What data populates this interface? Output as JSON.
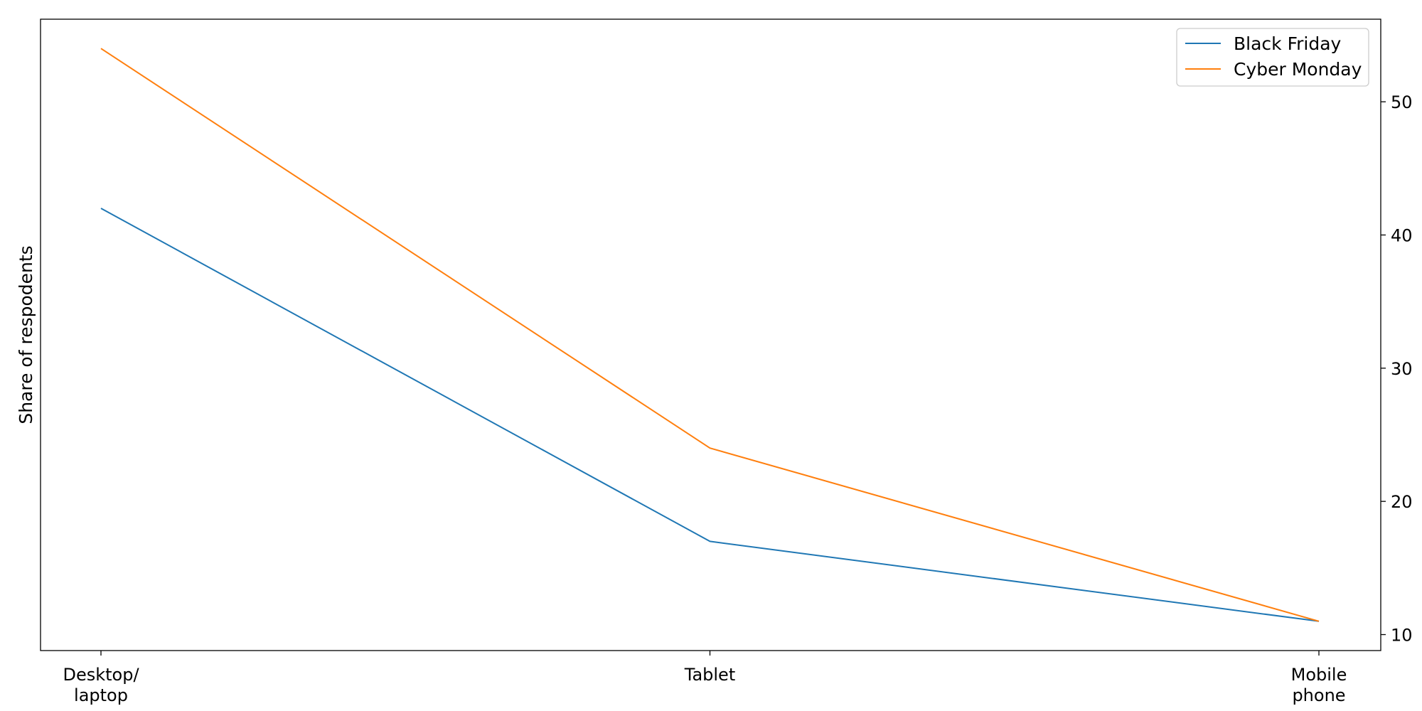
{
  "chart_data": {
    "type": "line",
    "title": "",
    "xlabel": "",
    "ylabel": "Share of respodents",
    "y_axis_side": "right",
    "categories": [
      [
        "Desktop/",
        "laptop"
      ],
      [
        "Tablet"
      ],
      [
        "Mobile",
        "phone"
      ]
    ],
    "series": [
      {
        "name": "Black Friday",
        "values": [
          42,
          17,
          11
        ],
        "color": "#1f77b4"
      },
      {
        "name": "Cyber Monday",
        "values": [
          54,
          24,
          11
        ],
        "color": "#ff7f0e"
      }
    ],
    "ylim": [
      8.8,
      56.2
    ],
    "yticks": [
      10,
      20,
      30,
      40,
      50
    ],
    "grid": false,
    "legend_position": "top-right"
  }
}
